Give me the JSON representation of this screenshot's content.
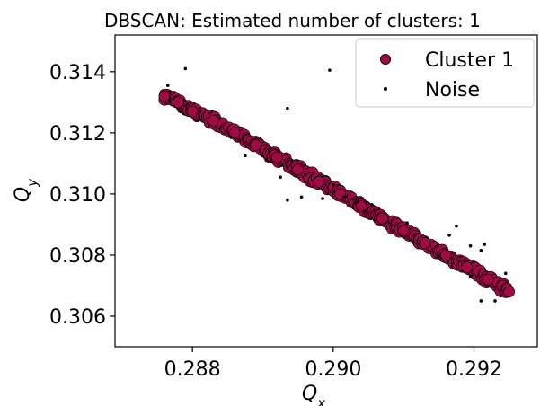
{
  "chart_data": {
    "type": "scatter",
    "title": "DBSCAN: Estimated number of clusters: 1",
    "xlabel_main": "Q",
    "xlabel_sub": "x",
    "ylabel_main": "Q",
    "ylabel_sub": "y",
    "xlim": [
      0.2869,
      0.2929
    ],
    "ylim": [
      0.305,
      0.3152
    ],
    "xticks": [
      0.288,
      0.29,
      0.292
    ],
    "xtick_labels": [
      "0.288",
      "0.290",
      "0.292"
    ],
    "yticks": [
      0.306,
      0.308,
      0.31,
      0.312,
      0.314
    ],
    "ytick_labels": [
      "0.306",
      "0.308",
      "0.310",
      "0.312",
      "0.314"
    ],
    "legend_position": "top-right",
    "grid": false,
    "series": [
      {
        "name": "Cluster 1",
        "marker": "circle",
        "color": "#a10b45",
        "edge_color": "#000000",
        "trend_start": [
          0.28765,
          0.3132
        ],
        "trend_end": [
          0.29255,
          0.30675
        ],
        "points": [
          [
            0.2876,
            0.3132
          ],
          [
            0.2878,
            0.313
          ],
          [
            0.288,
            0.3127
          ],
          [
            0.2883,
            0.3124
          ],
          [
            0.2886,
            0.312
          ],
          [
            0.2889,
            0.3116
          ],
          [
            0.2892,
            0.3112
          ],
          [
            0.2895,
            0.3108
          ],
          [
            0.2898,
            0.3104
          ],
          [
            0.2901,
            0.31
          ],
          [
            0.2904,
            0.3096
          ],
          [
            0.2907,
            0.3092
          ],
          [
            0.291,
            0.3088
          ],
          [
            0.2913,
            0.3084
          ],
          [
            0.2916,
            0.308
          ],
          [
            0.2919,
            0.3076
          ],
          [
            0.2922,
            0.3072
          ],
          [
            0.2925,
            0.3068
          ]
        ]
      },
      {
        "name": "Noise",
        "marker": "point",
        "color": "#000000",
        "points": [
          [
            0.28765,
            0.31355
          ],
          [
            0.2879,
            0.3141
          ],
          [
            0.28935,
            0.3128
          ],
          [
            0.28995,
            0.31405
          ],
          [
            0.28855,
            0.31185
          ],
          [
            0.28905,
            0.3111
          ],
          [
            0.28875,
            0.31125
          ],
          [
            0.28925,
            0.31055
          ],
          [
            0.28935,
            0.3098
          ],
          [
            0.28955,
            0.3099
          ],
          [
            0.28985,
            0.30985
          ],
          [
            0.29,
            0.3103
          ],
          [
            0.29015,
            0.3099
          ],
          [
            0.29035,
            0.30975
          ],
          [
            0.29055,
            0.30965
          ],
          [
            0.29045,
            0.30945
          ],
          [
            0.29105,
            0.30905
          ],
          [
            0.29165,
            0.30865
          ],
          [
            0.29175,
            0.30895
          ],
          [
            0.29195,
            0.3083
          ],
          [
            0.2921,
            0.30815
          ],
          [
            0.29195,
            0.3073
          ],
          [
            0.2921,
            0.3065
          ],
          [
            0.2923,
            0.3065
          ],
          [
            0.29245,
            0.3074
          ],
          [
            0.29215,
            0.30835
          ]
        ]
      }
    ]
  }
}
